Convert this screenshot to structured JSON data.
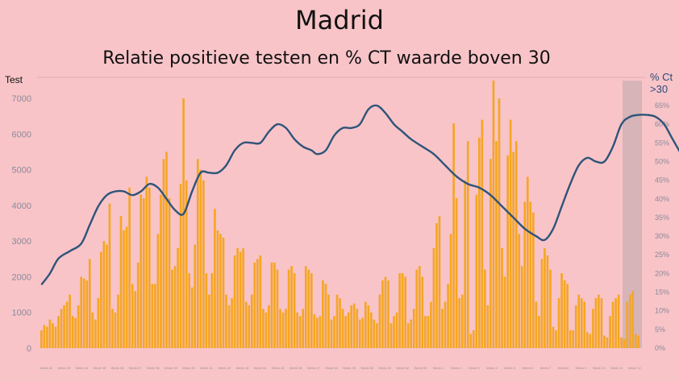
{
  "chart_data": {
    "type": "bar",
    "title": "Madrid",
    "subtitle": "Relatie positieve testen en % CT waarde boven 30",
    "left_axis_label": "Test",
    "right_axis_label": [
      "% Ct",
      ">30"
    ],
    "y_left": {
      "min": 0,
      "max": 7000,
      "ticks": [
        0,
        1000,
        2000,
        3000,
        4000,
        5000,
        6000,
        7000
      ]
    },
    "y_right": {
      "min": 0,
      "max": 65,
      "ticks": [
        0,
        5,
        10,
        15,
        20,
        25,
        30,
        35,
        40,
        45,
        50,
        55,
        60,
        65
      ],
      "suffix": "%"
    },
    "series": [
      {
        "name": "Test",
        "kind": "bar",
        "color": "#f5a623",
        "values": [
          500,
          650,
          600,
          800,
          700,
          600,
          900,
          1100,
          1200,
          1300,
          1500,
          900,
          850,
          1200,
          2000,
          1950,
          1900,
          2500,
          1000,
          800,
          1400,
          2700,
          3000,
          2900,
          4050,
          1100,
          1000,
          1500,
          3700,
          3300,
          3400,
          4500,
          1800,
          1600,
          2400,
          4300,
          4200,
          4800,
          4500,
          1800,
          1800,
          3200,
          4300,
          5300,
          5500,
          4200,
          2200,
          2300,
          2800,
          4600,
          7000,
          4700,
          2100,
          1700,
          2900,
          5300,
          5000,
          4700,
          2100,
          1500,
          2100,
          3900,
          3300,
          3200,
          3100,
          1500,
          1200,
          1400,
          2600,
          2800,
          2700,
          2800,
          1300,
          1200,
          1500,
          2400,
          2500,
          2600,
          1100,
          1000,
          1200,
          2400,
          2400,
          2200,
          1100,
          1000,
          1100,
          2200,
          2300,
          2100,
          1000,
          900,
          1100,
          2300,
          2200,
          2100,
          950,
          850,
          900,
          1900,
          1800,
          1500,
          800,
          900,
          1500,
          1400,
          1100,
          900,
          1000,
          1200,
          1250,
          1100,
          800,
          850,
          1300,
          1200,
          1000,
          800,
          700,
          1500,
          1900,
          2000,
          1900,
          700,
          900,
          1000,
          2100,
          2100,
          2000,
          700,
          800,
          1100,
          2200,
          2300,
          2000,
          900,
          900,
          1300,
          2800,
          3500,
          3700,
          1100,
          1300,
          1800,
          3200,
          6300,
          4200,
          1400,
          1500,
          4700,
          5800,
          400,
          500,
          4300,
          5900,
          6400,
          2200,
          1200,
          5300,
          7500,
          5800,
          7000,
          2800,
          2000,
          5400,
          6400,
          5500,
          5800,
          3200,
          2300,
          4100,
          4800,
          4100,
          3800,
          1300,
          900,
          2500,
          2800,
          2600,
          2200,
          600,
          500,
          1400,
          2100,
          1900,
          1800,
          500,
          500,
          1200,
          1500,
          1400,
          1300,
          450,
          400,
          1100,
          1400,
          1500,
          1400,
          350,
          300,
          900,
          1300,
          1400,
          1500,
          300,
          250,
          1300,
          1500,
          1600,
          400,
          350
        ]
      },
      {
        "name": "% Ct >30",
        "kind": "line",
        "axis": "right",
        "color": "#2f5479",
        "points": [
          [
            0,
            17
          ],
          [
            3,
            20
          ],
          [
            6,
            24
          ],
          [
            10,
            26
          ],
          [
            14,
            28
          ],
          [
            17,
            33
          ],
          [
            20,
            38
          ],
          [
            23,
            41
          ],
          [
            26,
            42
          ],
          [
            29,
            42
          ],
          [
            32,
            41
          ],
          [
            35,
            42
          ],
          [
            38,
            44
          ],
          [
            41,
            43
          ],
          [
            44,
            40
          ],
          [
            47,
            37
          ],
          [
            50,
            36
          ],
          [
            53,
            42
          ],
          [
            56,
            47
          ],
          [
            59,
            47
          ],
          [
            62,
            47
          ],
          [
            65,
            49
          ],
          [
            68,
            53
          ],
          [
            71,
            55
          ],
          [
            74,
            55
          ],
          [
            77,
            55
          ],
          [
            80,
            58
          ],
          [
            83,
            60
          ],
          [
            86,
            59
          ],
          [
            89,
            56
          ],
          [
            92,
            54
          ],
          [
            95,
            53
          ],
          [
            97,
            52
          ],
          [
            100,
            53
          ],
          [
            103,
            57
          ],
          [
            106,
            59
          ],
          [
            109,
            59
          ],
          [
            112,
            60
          ],
          [
            115,
            64
          ],
          [
            118,
            65
          ],
          [
            121,
            63
          ],
          [
            124,
            60
          ],
          [
            127,
            58
          ],
          [
            130,
            56
          ],
          [
            134,
            54
          ],
          [
            138,
            52
          ],
          [
            142,
            49
          ],
          [
            146,
            46
          ],
          [
            150,
            44
          ],
          [
            154,
            43
          ],
          [
            158,
            41
          ],
          [
            162,
            38
          ],
          [
            166,
            35
          ],
          [
            170,
            32
          ],
          [
            174,
            30
          ],
          [
            177,
            29
          ],
          [
            180,
            32
          ],
          [
            183,
            38
          ],
          [
            186,
            44
          ],
          [
            189,
            49
          ],
          [
            192,
            51
          ],
          [
            195,
            50
          ],
          [
            198,
            50
          ],
          [
            201,
            54
          ],
          [
            204,
            60
          ],
          [
            207,
            62
          ],
          [
            210,
            62.5
          ],
          [
            213,
            62.5
          ],
          [
            216,
            62
          ],
          [
            219,
            60
          ],
          [
            222,
            56
          ],
          [
            225,
            52
          ],
          [
            228,
            48
          ],
          [
            231,
            45
          ],
          [
            234,
            42
          ]
        ]
      }
    ],
    "x_tick_labels": [
      "Week 32",
      "Week 33",
      "Week 34",
      "Week 35",
      "Week 36",
      "Week 37",
      "Week 38",
      "Week 39",
      "Week 40",
      "Week 41",
      "Week 42",
      "Week 43",
      "Week 44",
      "Week 45",
      "Week 46",
      "Week 47",
      "Week 48",
      "Week 49",
      "Week 50",
      "Week 51",
      "Week 52",
      "Week 53",
      "Week 1",
      "Week 2",
      "Week 3",
      "Week 4",
      "Week 5",
      "Week 6",
      "Week 7",
      "Week 8",
      "Week 9",
      "Week 10",
      "Week 11",
      "Week 12"
    ],
    "grid": false
  },
  "colors": {
    "background": "#f8c4c8",
    "bar": "#f5a623",
    "line": "#2f5479",
    "highlight": "#c8aeb1",
    "axis_text": "#8a8a9a"
  }
}
